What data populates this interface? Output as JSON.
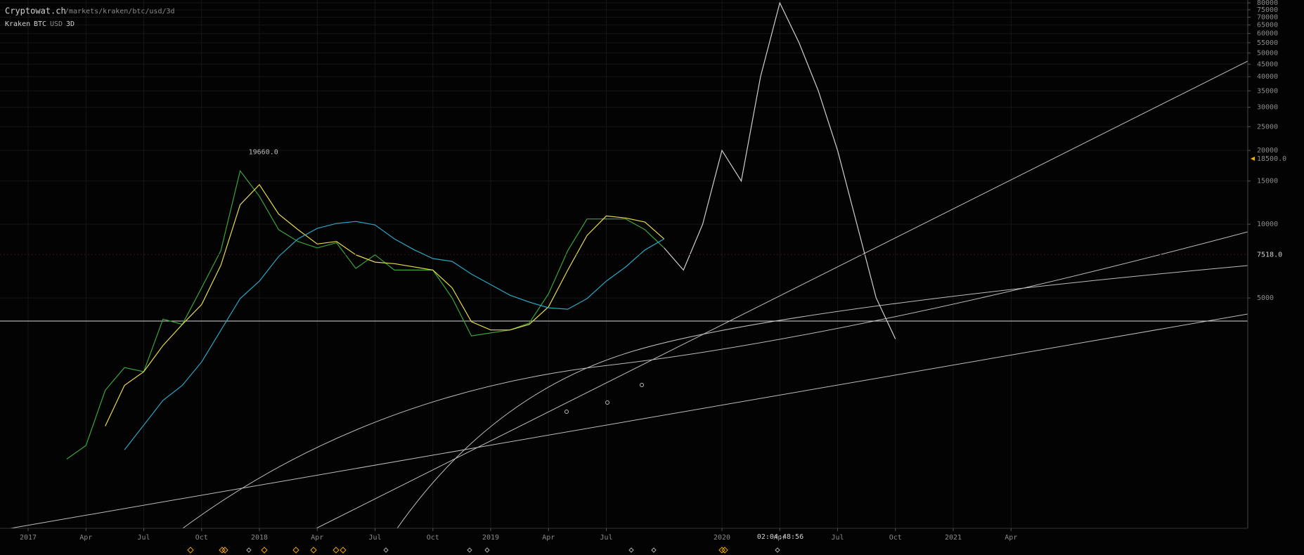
{
  "chart_data": {
    "type": "line",
    "title": "Cryptowat.ch",
    "path": "/markets/kraken/btc/usd/3d",
    "subtitle": {
      "exchange": "Kraken",
      "base": "BTC",
      "quote": "USD",
      "period": "3D"
    },
    "countdown": "02:04:48:56",
    "high_label": {
      "x": "2017-12",
      "value": 19660,
      "label": "19660.0"
    },
    "alert_marker": {
      "value": 18500,
      "label": "18500.0",
      "color": "#f0b400"
    },
    "last_price": {
      "value": 7518,
      "label": "7518.0"
    },
    "log_scale": true,
    "grid": true,
    "xlim": [
      "2016-11",
      "2022-05"
    ],
    "ylim": [
      574,
      82200
    ],
    "xticks": [
      {
        "value": "2017-01",
        "label": "2017"
      },
      {
        "value": "2017-04",
        "label": "Apr"
      },
      {
        "value": "2017-07",
        "label": "Jul"
      },
      {
        "value": "2017-10",
        "label": "Oct"
      },
      {
        "value": "2018-01",
        "label": "2018"
      },
      {
        "value": "2018-04",
        "label": "Apr"
      },
      {
        "value": "2018-07",
        "label": "Jul"
      },
      {
        "value": "2018-10",
        "label": "Oct"
      },
      {
        "value": "2019-01",
        "label": "2019"
      },
      {
        "value": "2019-04",
        "label": "Apr"
      },
      {
        "value": "2019-07",
        "label": "Jul"
      },
      {
        "value": "2020-01",
        "label": "2020"
      },
      {
        "value": "2020-04",
        "label": "Apr"
      },
      {
        "value": "2020-07",
        "label": "Jul"
      },
      {
        "value": "2020-10",
        "label": "Oct"
      },
      {
        "value": "2021-01",
        "label": "2021"
      },
      {
        "value": "2021-04",
        "label": "Apr"
      }
    ],
    "yticks": [
      80000,
      75000,
      70000,
      65000,
      60000,
      55000,
      50000,
      45000,
      40000,
      35000,
      30000,
      25000,
      20000,
      15000,
      10000,
      5000
    ],
    "series": [
      {
        "color": "#3aa43a",
        "x": [
          "2017-03",
          "2017-04",
          "2017-05",
          "2017-06",
          "2017-07",
          "2017-08",
          "2017-09",
          "2017-10",
          "2017-11",
          "2017-12",
          "2018-01",
          "2018-02",
          "2018-03",
          "2018-04",
          "2018-05",
          "2018-06",
          "2018-07",
          "2018-08",
          "2018-09",
          "2018-10",
          "2018-11",
          "2018-12",
          "2019-01",
          "2019-02",
          "2019-03",
          "2019-04",
          "2019-05",
          "2019-06",
          "2019-07",
          "2019-08",
          "2019-09",
          "2019-10"
        ],
        "values": [
          1100,
          1250,
          2100,
          2600,
          2500,
          4100,
          3900,
          5500,
          7800,
          16500,
          13000,
          9500,
          8500,
          8000,
          8400,
          6600,
          7500,
          6500,
          6500,
          6500,
          5000,
          3500,
          3600,
          3700,
          3950,
          5200,
          7800,
          10500,
          10500,
          10500,
          9500,
          8000
        ]
      },
      {
        "color": "#e8dc4a",
        "x": [
          "2017-05",
          "2017-06",
          "2017-07",
          "2017-08",
          "2017-09",
          "2017-10",
          "2017-11",
          "2017-12",
          "2018-01",
          "2018-02",
          "2018-03",
          "2018-04",
          "2018-05",
          "2018-06",
          "2018-07",
          "2018-08",
          "2018-09",
          "2018-10",
          "2018-11",
          "2018-12",
          "2019-01",
          "2019-02",
          "2019-03",
          "2019-04",
          "2019-05",
          "2019-06",
          "2019-07",
          "2019-08",
          "2019-09",
          "2019-10"
        ],
        "values": [
          1500,
          2200,
          2500,
          3200,
          3900,
          4700,
          6800,
          12000,
          14500,
          11000,
          9500,
          8300,
          8500,
          7500,
          7000,
          6900,
          6700,
          6500,
          5500,
          4000,
          3700,
          3700,
          3900,
          4600,
          6500,
          9000,
          10800,
          10600,
          10200,
          8700
        ]
      },
      {
        "color": "#2aa6c4",
        "x": [
          "2017-06",
          "2017-08",
          "2017-09",
          "2017-10",
          "2017-11",
          "2017-12",
          "2018-01",
          "2018-02",
          "2018-03",
          "2018-04",
          "2018-05",
          "2018-06",
          "2018-07",
          "2018-08",
          "2018-09",
          "2018-10",
          "2018-11",
          "2018-12",
          "2019-01",
          "2019-02",
          "2019-03",
          "2019-04",
          "2019-05",
          "2019-06",
          "2019-07",
          "2019-08",
          "2019-09",
          "2019-10"
        ],
        "values": [
          1200,
          1910,
          2200,
          2740,
          3690,
          4970,
          5860,
          7380,
          8710,
          9610,
          10070,
          10260,
          9930,
          8710,
          7880,
          7240,
          7050,
          6260,
          5670,
          5130,
          4810,
          4560,
          4500,
          4970,
          5860,
          6690,
          7850,
          8710
        ]
      },
      {
        "color": "#cfcfcf",
        "x": [
          "2019-10",
          "2019-11",
          "2019-12",
          "2020-01",
          "2020-02",
          "2020-03",
          "2020-04",
          "2020-05",
          "2020-06",
          "2020-07",
          "2020-08",
          "2020-09",
          "2020-10"
        ],
        "values": [
          8000,
          6500,
          10000,
          20000,
          15000,
          40000,
          80000,
          55000,
          35000,
          20000,
          10000,
          5000,
          3400
        ]
      }
    ]
  }
}
